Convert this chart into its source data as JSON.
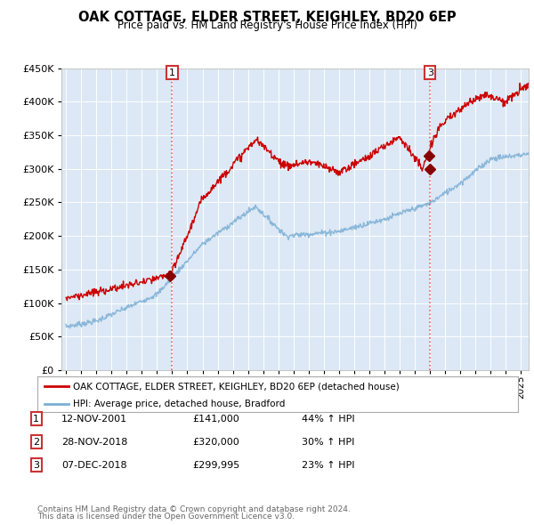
{
  "title": "OAK COTTAGE, ELDER STREET, KEIGHLEY, BD20 6EP",
  "subtitle": "Price paid vs. HM Land Registry's House Price Index (HPI)",
  "legend_label_red": "OAK COTTAGE, ELDER STREET, KEIGHLEY, BD20 6EP (detached house)",
  "legend_label_blue": "HPI: Average price, detached house, Bradford",
  "footer1": "Contains HM Land Registry data © Crown copyright and database right 2024.",
  "footer2": "This data is licensed under the Open Government Licence v3.0.",
  "transactions": [
    {
      "num": 1,
      "date": "12-NOV-2001",
      "price": "£141,000",
      "hpi_pct": "44% ↑ HPI"
    },
    {
      "num": 2,
      "date": "28-NOV-2018",
      "price": "£320,000",
      "hpi_pct": "30% ↑ HPI"
    },
    {
      "num": 3,
      "date": "07-DEC-2018",
      "price": "£299,995",
      "hpi_pct": "23% ↑ HPI"
    }
  ],
  "plot_background": "#dce8f5",
  "red_color": "#cc0000",
  "blue_color": "#7bafd4",
  "ylim": [
    0,
    450000
  ],
  "yticks": [
    0,
    50000,
    100000,
    150000,
    200000,
    250000,
    300000,
    350000,
    400000,
    450000
  ],
  "year_start": 1995,
  "year_end": 2025,
  "t1_year": 2001.88,
  "t1_price": 141000,
  "t2_year": 2018.91,
  "t2_price": 320000,
  "t3_year": 2018.96,
  "t3_price": 299995,
  "vline1_year": 2002.0,
  "vline3_year": 2019.0
}
